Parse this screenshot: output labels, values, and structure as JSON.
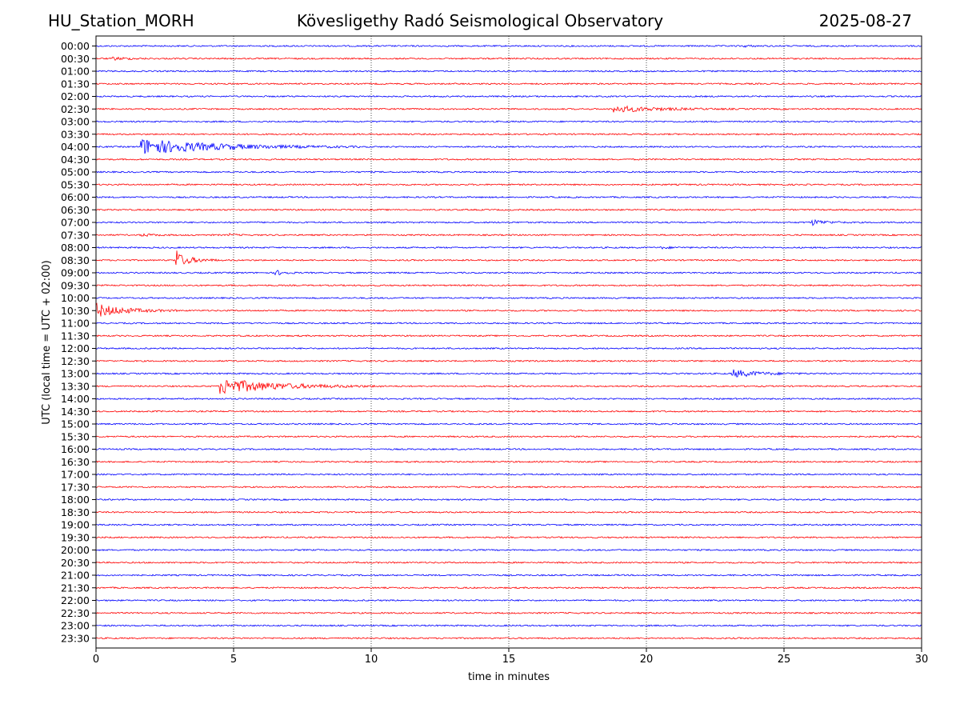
{
  "header": {
    "station": "HU_Station_MORH",
    "observatory": "Kövesligethy Radó Seismological Observatory",
    "date": "2025-08-27"
  },
  "chart_data": {
    "type": "line",
    "title": "Kövesligethy Radó Seismological Observatory",
    "xlabel": "time in minutes",
    "ylabel": "UTC (local time = UTC + 02:00)",
    "xlim": [
      0,
      30
    ],
    "xticks": [
      0,
      5,
      10,
      15,
      20,
      25,
      30
    ],
    "grid": "vertical dotted at x ticks",
    "colors": {
      "even_row": "#0000ff",
      "odd_row": "#ff0000"
    },
    "row_labels": [
      "00:00",
      "00:30",
      "01:00",
      "01:30",
      "02:00",
      "02:30",
      "03:00",
      "03:30",
      "04:00",
      "04:30",
      "05:00",
      "05:30",
      "06:00",
      "06:30",
      "07:00",
      "07:30",
      "08:00",
      "08:30",
      "09:00",
      "09:30",
      "10:00",
      "10:30",
      "11:00",
      "11:30",
      "12:00",
      "12:30",
      "13:00",
      "13:30",
      "14:00",
      "14:30",
      "15:00",
      "15:30",
      "16:00",
      "16:30",
      "17:00",
      "17:30",
      "18:00",
      "18:30",
      "19:00",
      "19:30",
      "20:00",
      "20:30",
      "21:00",
      "21:30",
      "22:00",
      "22:30",
      "23:00",
      "23:30"
    ],
    "events": [
      {
        "row": "00:00",
        "start_min": 23.5,
        "duration_min": 1.0,
        "amplitude": 0.12
      },
      {
        "row": "00:30",
        "start_min": 0.6,
        "duration_min": 1.8,
        "amplitude": 0.18
      },
      {
        "row": "02:30",
        "start_min": 18.8,
        "duration_min": 4.5,
        "amplitude": 0.45
      },
      {
        "row": "04:00",
        "start_min": 1.6,
        "duration_min": 8.0,
        "amplitude": 1.1
      },
      {
        "row": "07:00",
        "start_min": 26.0,
        "duration_min": 1.5,
        "amplitude": 0.4
      },
      {
        "row": "07:30",
        "start_min": 1.6,
        "duration_min": 1.3,
        "amplitude": 0.18
      },
      {
        "row": "07:30",
        "start_min": 4.8,
        "duration_min": 0.6,
        "amplitude": 0.18
      },
      {
        "row": "08:00",
        "start_min": 20.5,
        "duration_min": 1.2,
        "amplitude": 0.14
      },
      {
        "row": "08:30",
        "start_min": 2.9,
        "duration_min": 1.6,
        "amplitude": 1.0,
        "spike": 2.6
      },
      {
        "row": "09:00",
        "start_min": 6.5,
        "duration_min": 0.9,
        "amplitude": 0.4
      },
      {
        "row": "10:30",
        "start_min": 0.0,
        "duration_min": 3.0,
        "amplitude": 0.95
      },
      {
        "row": "13:00",
        "start_min": 23.1,
        "duration_min": 2.8,
        "amplitude": 0.55
      },
      {
        "row": "13:30",
        "start_min": 4.5,
        "duration_min": 6.0,
        "amplitude": 1.1
      }
    ]
  }
}
